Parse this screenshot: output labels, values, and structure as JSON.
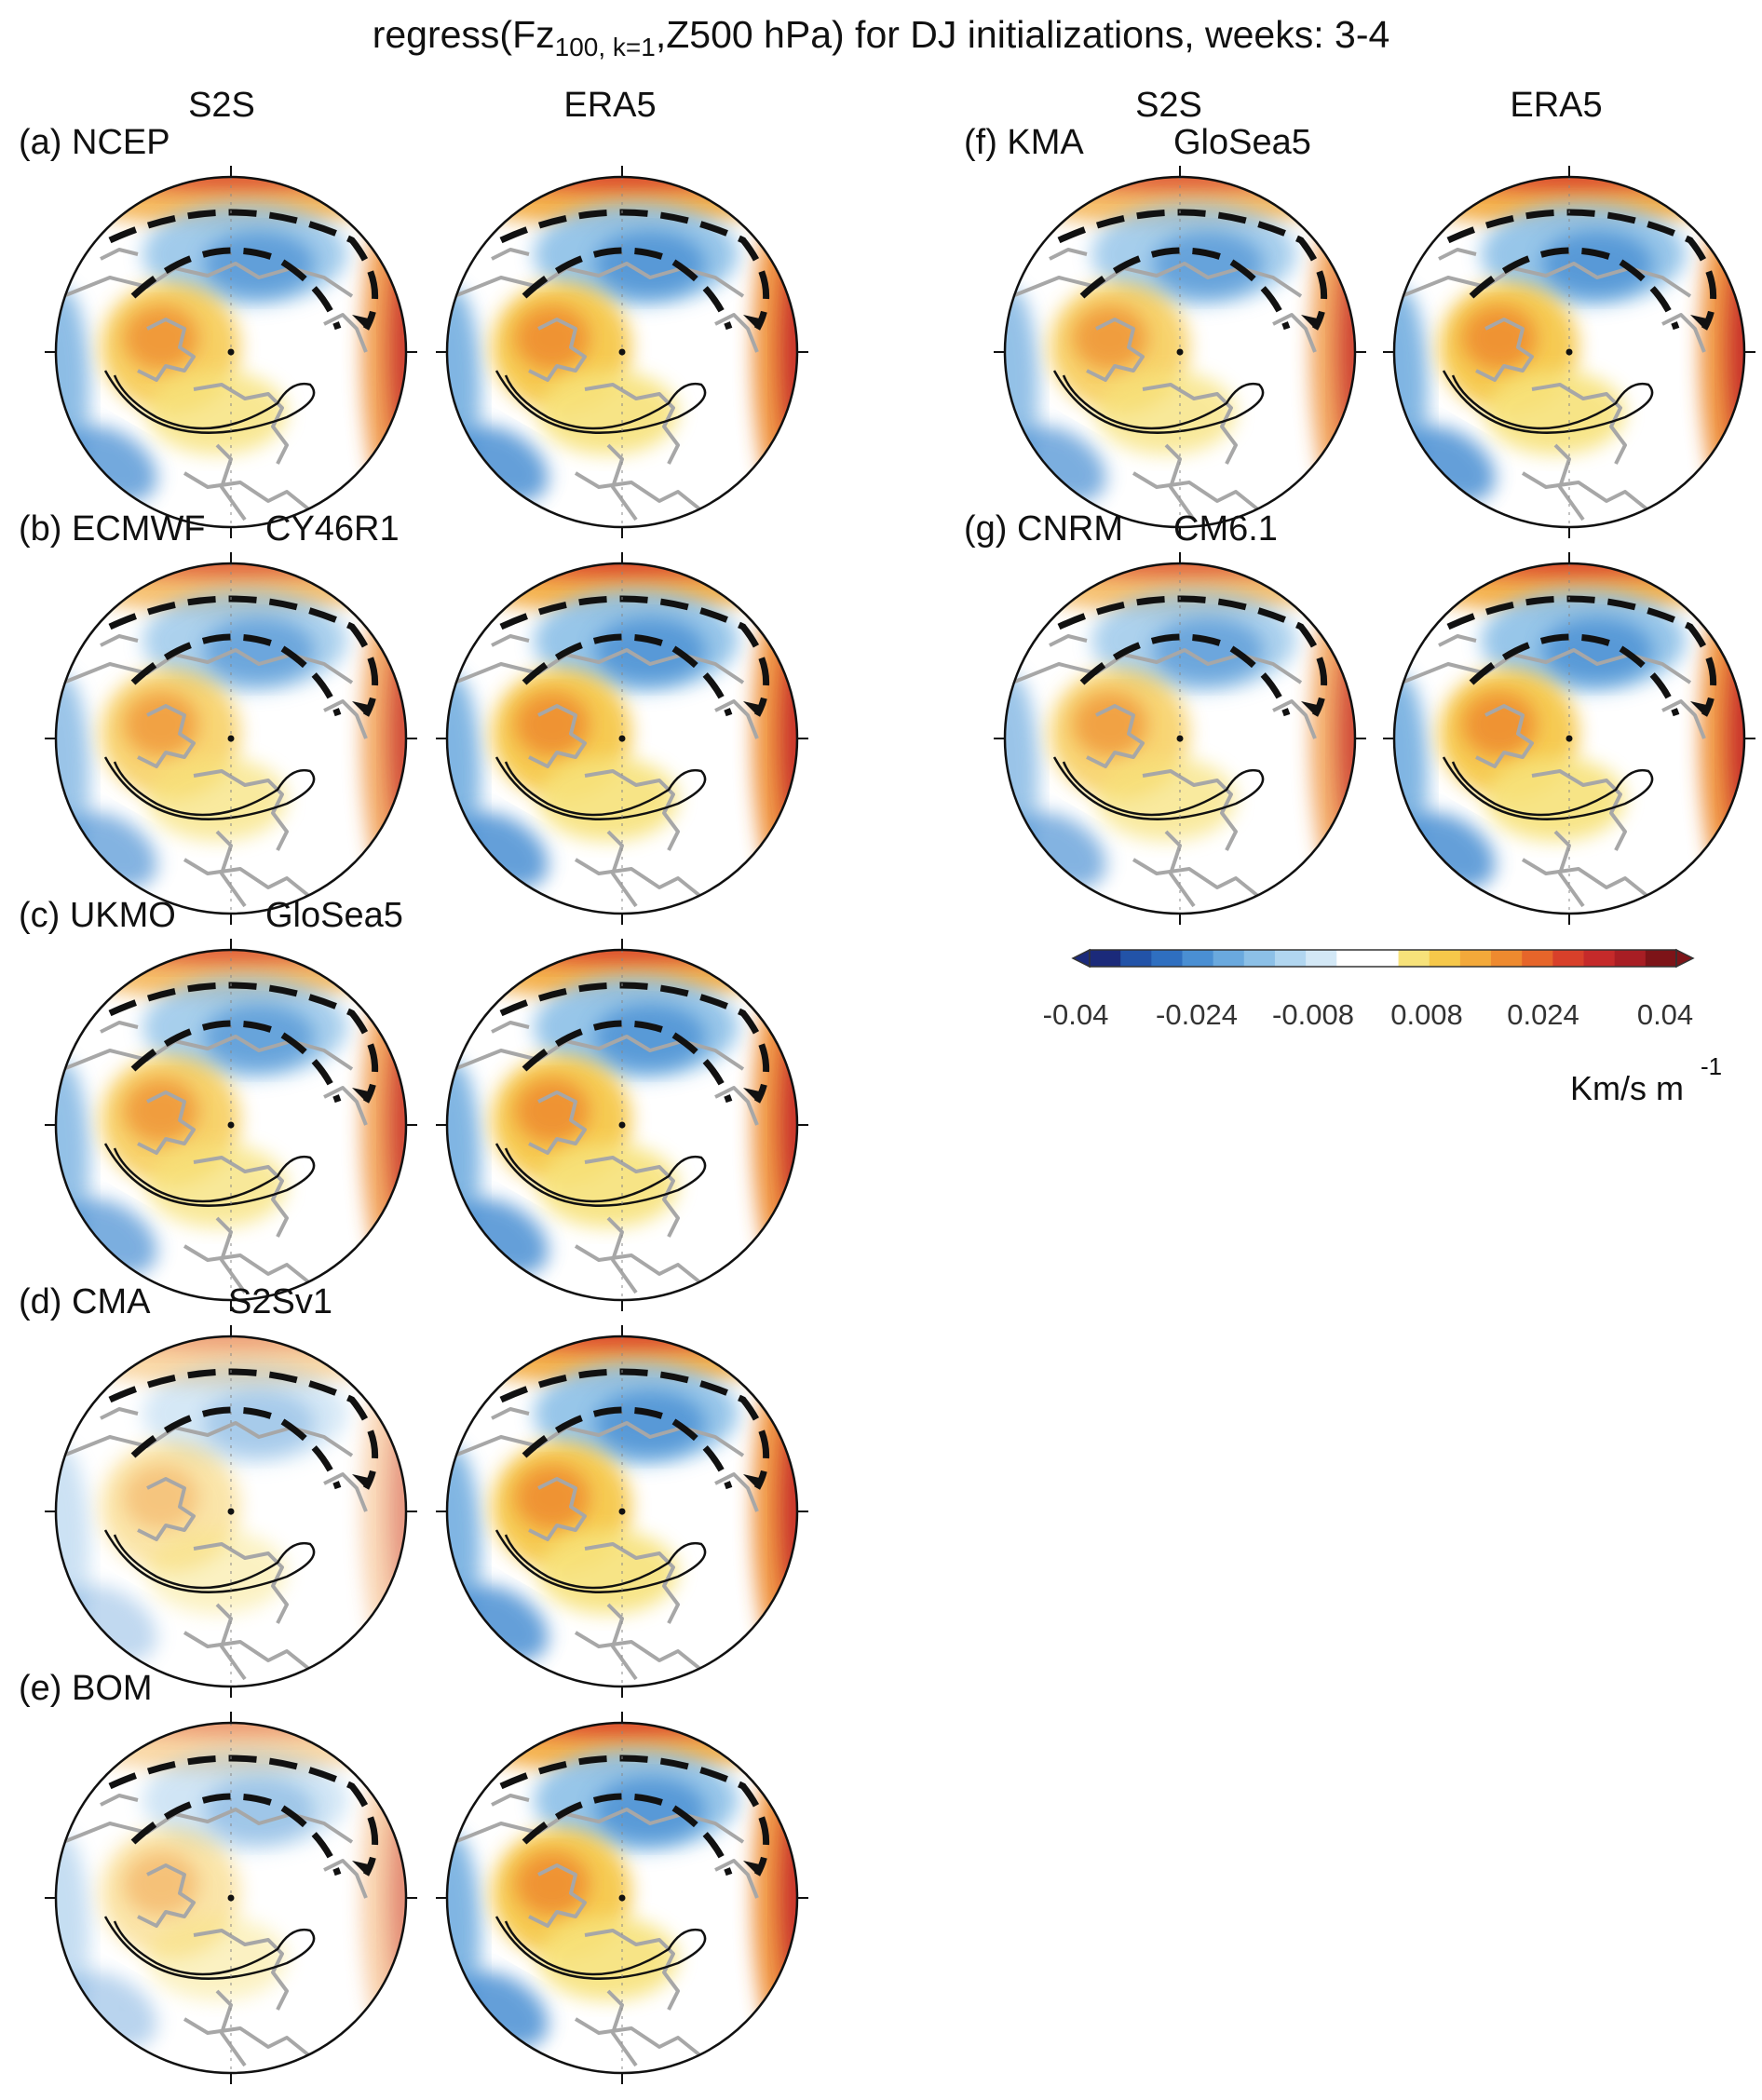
{
  "title": {
    "prefix": "regress(Fz",
    "subscript": "100, k=1",
    "suffix": ",Z500 hPa) for DJ initializations, weeks: 3-4"
  },
  "columns": {
    "left_s2s": "S2S",
    "left_era5": "ERA5",
    "right_s2s": "S2S",
    "right_era5": "ERA5"
  },
  "rows": [
    {
      "id": "a",
      "label": "(a) NCEP",
      "model": ""
    },
    {
      "id": "b",
      "label": "(b) ECMWF",
      "model": "CY46R1"
    },
    {
      "id": "c",
      "label": "(c) UKMO",
      "model": "GloSea5"
    },
    {
      "id": "d",
      "label": "(d) CMA",
      "model": "S2Sv1"
    },
    {
      "id": "e",
      "label": "(e) BOM",
      "model": ""
    },
    {
      "id": "f",
      "label": "(f) KMA",
      "model": "GloSea5"
    },
    {
      "id": "g",
      "label": "(g) CNRM",
      "model": "CM6.1"
    }
  ],
  "colorbar": {
    "ticks": [
      "-0.04",
      "-0.024",
      "-0.008",
      "0.008",
      "0.024",
      "0.04"
    ],
    "unit": "Km/s m",
    "unit_exp": "-1",
    "range": [
      -0.04,
      0.04
    ],
    "colors": [
      "#1b2a7a",
      "#2253a8",
      "#2f6fc0",
      "#4a8fd3",
      "#6aa9de",
      "#8cc0e7",
      "#b1d6f0",
      "#d3e8f6",
      "#ffffff",
      "#ffffff",
      "#f7e27a",
      "#f6c84a",
      "#f3a93a",
      "#ee8a2f",
      "#e6652a",
      "#d8402a",
      "#c52a2a",
      "#a81e24",
      "#7d1418"
    ]
  },
  "chart_data": {
    "type": "heatmap",
    "description_fields": "polar stereographic regression maps; S2S vs ERA5 per model",
    "panels": [
      {
        "id": "a",
        "model": "NCEP",
        "s2s_intensity": 0.9,
        "era5_intensity": 1.0
      },
      {
        "id": "b",
        "model": "ECMWF CY46R1",
        "s2s_intensity": 0.8,
        "era5_intensity": 1.0
      },
      {
        "id": "c",
        "model": "UKMO GloSea5",
        "s2s_intensity": 0.85,
        "era5_intensity": 1.0
      },
      {
        "id": "d",
        "model": "CMA S2Sv1",
        "s2s_intensity": 0.4,
        "era5_intensity": 1.0
      },
      {
        "id": "e",
        "model": "BOM",
        "s2s_intensity": 0.45,
        "era5_intensity": 1.0
      },
      {
        "id": "f",
        "model": "KMA GloSea5",
        "s2s_intensity": 0.85,
        "era5_intensity": 1.0
      },
      {
        "id": "g",
        "model": "CNRM CM6.1",
        "s2s_intensity": 0.8,
        "era5_intensity": 1.0
      }
    ]
  }
}
